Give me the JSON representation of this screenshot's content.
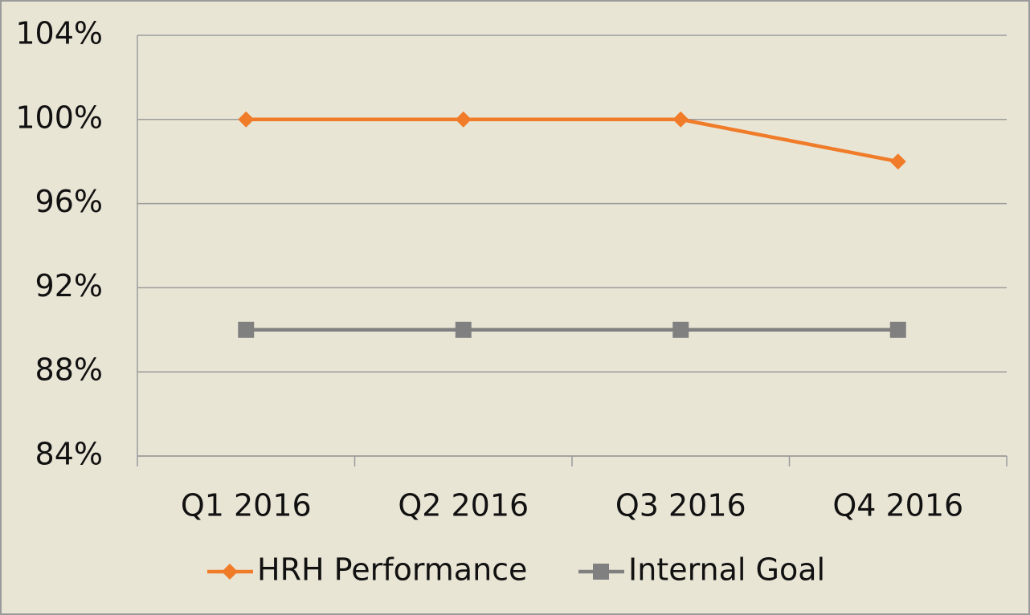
{
  "chart_data": {
    "type": "line",
    "categories": [
      "Q1 2016",
      "Q2 2016",
      "Q3 2016",
      "Q4 2016"
    ],
    "series": [
      {
        "name": "HRH Performance",
        "color": "#f07b28",
        "marker": "diamond",
        "values": [
          100,
          100,
          100,
          98
        ]
      },
      {
        "name": "Internal Goal",
        "color": "#808080",
        "marker": "square",
        "values": [
          90,
          90,
          90,
          90
        ]
      }
    ],
    "ylim": [
      84,
      104
    ],
    "yticks": [
      {
        "value": 84,
        "label": "84%"
      },
      {
        "value": 88,
        "label": "88%"
      },
      {
        "value": 92,
        "label": "92%"
      },
      {
        "value": 96,
        "label": "96%"
      },
      {
        "value": 100,
        "label": "100%"
      },
      {
        "value": 104,
        "label": "104%"
      }
    ],
    "grid": true,
    "legend": "bottom"
  }
}
